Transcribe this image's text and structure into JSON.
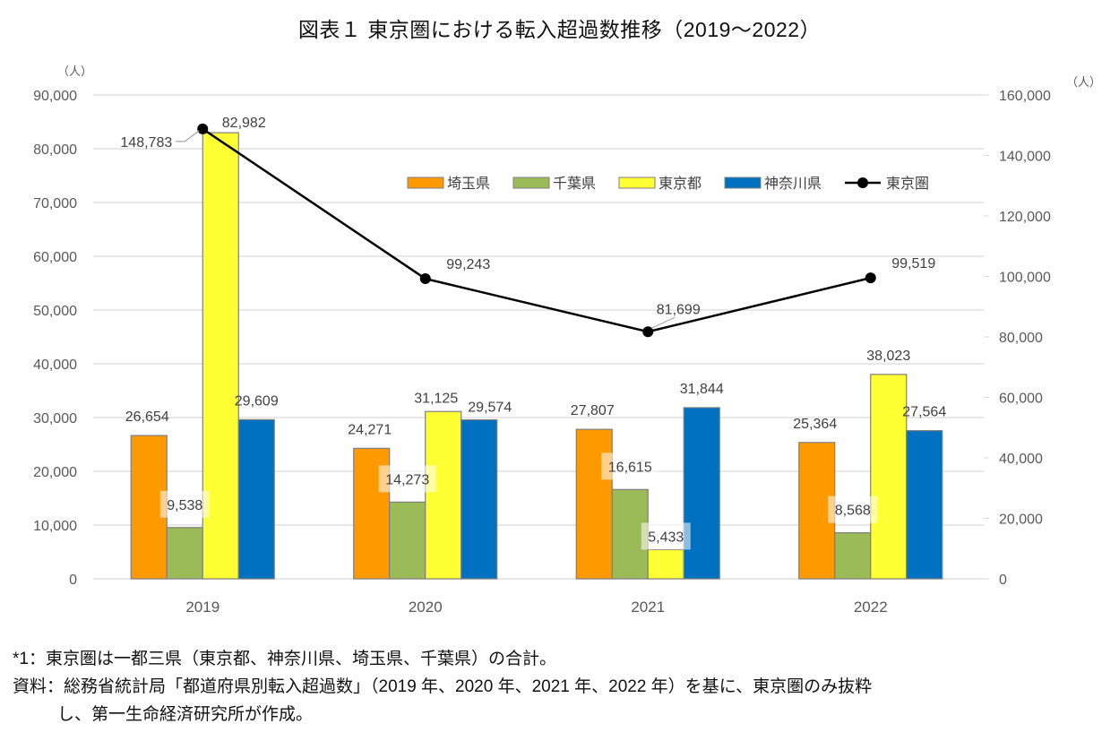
{
  "title": "図表１ 東京圏における転入超過数推移（2019～2022）",
  "notes": [
    "*1：東京圏は一都三県（東京都、神奈川県、埼玉県、千葉県）の合計。",
    "資料：総務省統計局「都道府県別転入超過数」（2019 年、2020 年、2021 年、2022 年）を基に、東京圏のみ抜粋",
    "し、第一生命経済研究所が作成。"
  ],
  "chart_data": {
    "type": "bar",
    "title": "図表１ 東京圏における転入超過数推移（2019～2022）",
    "categories": [
      "2019",
      "2020",
      "2021",
      "2022"
    ],
    "y_left": {
      "unit_label": "（人）",
      "min": 0,
      "max": 90000,
      "step": 10000,
      "ticks": [
        "0",
        "10,000",
        "20,000",
        "30,000",
        "40,000",
        "50,000",
        "60,000",
        "70,000",
        "80,000",
        "90,000"
      ]
    },
    "y_right": {
      "unit_label": "（人）",
      "min": 0,
      "max": 160000,
      "step": 20000,
      "ticks": [
        "0",
        "20,000",
        "40,000",
        "60,000",
        "80,000",
        "100,000",
        "120,000",
        "140,000",
        "160,000"
      ]
    },
    "grid": true,
    "legend_position": "top-right",
    "series": [
      {
        "name": "埼玉県",
        "type": "bar",
        "axis": "left",
        "color": "#FF9900",
        "values": [
          26654,
          24271,
          27807,
          25364
        ],
        "labels": [
          "26,654",
          "24,271",
          "27,807",
          "25,364"
        ]
      },
      {
        "name": "千葉県",
        "type": "bar",
        "axis": "left",
        "color": "#9BBB59",
        "values": [
          9538,
          14273,
          16615,
          8568
        ],
        "labels": [
          "9,538",
          "14,273",
          "16,615",
          "8,568"
        ]
      },
      {
        "name": "東京都",
        "type": "bar",
        "axis": "left",
        "color": "#FFFF33",
        "values": [
          82982,
          31125,
          5433,
          38023
        ],
        "labels": [
          "82,982",
          "31,125",
          "5,433",
          "38,023"
        ]
      },
      {
        "name": "神奈川県",
        "type": "bar",
        "axis": "left",
        "color": "#0070C0",
        "values": [
          29609,
          29574,
          31844,
          27564
        ],
        "labels": [
          "29,609",
          "29,574",
          "31,844",
          "27,564"
        ]
      },
      {
        "name": "東京圏",
        "type": "line",
        "axis": "right",
        "color": "#000000",
        "values": [
          148783,
          99243,
          81699,
          99519
        ],
        "labels": [
          "148,783",
          "99,243",
          "81,699",
          "99,519"
        ]
      }
    ]
  }
}
